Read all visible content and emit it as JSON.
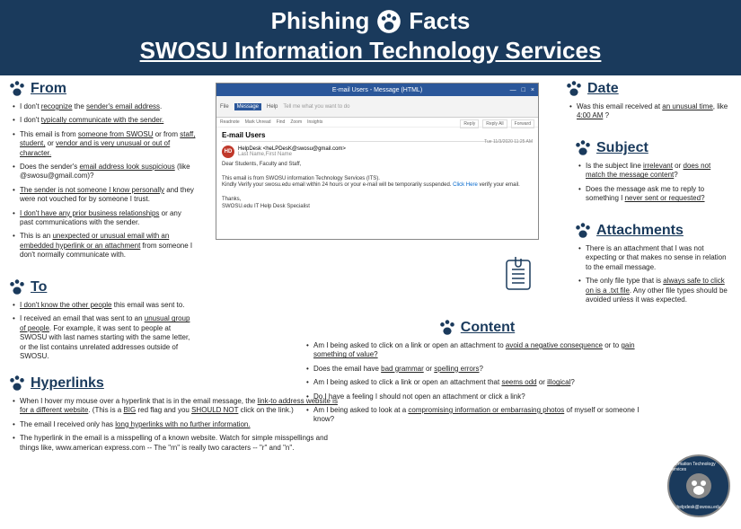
{
  "header": {
    "title_left": "Phishing",
    "title_right": "Facts",
    "subtitle": "SWOSU Information Technology Services"
  },
  "colors": {
    "primary": "#1a3a5c",
    "white": "#ffffff",
    "email_blue": "#2b579a",
    "avatar": "#c0392b"
  },
  "sections": {
    "from": {
      "title": "From",
      "items": [
        "I don't <u>recognize</u> the <u>sender's email address</u>.",
        "I don't <u>typically communicate with the sender.</u>",
        "This email is from <u>someone from SWOSU</u> or from <u>staff, student,</u> or <u>vendor and is very unusual or out of character.</u>",
        "Does the sender's <u>email address look suspicious</u> (like @swosu@gmail.com)?",
        "<u>The sender is not someone I know personally</u> and they were not vouched for by someone I trust.",
        "<u>I don't have any prior business relationships</u> or any past communications with the sender.",
        "This is an <u>unexpected or unusual email with an embedded hyperlink or an attachment</u> from someone I don't normally communicate with."
      ]
    },
    "to": {
      "title": "To",
      "items": [
        "<u>I don't know the other people</u> this email was sent to.",
        "I received an email that was sent to an <u>unusual group of people</u>. For example, it was sent  to people at SWOSU with last names starting with the same letter, or the list contains unrelated addresses outside of SWOSU."
      ]
    },
    "hyperlinks": {
      "title": "Hyperlinks",
      "items": [
        "When I hover my mouse over a hyperlink that is in the email message, the <u>link-to address website is for a different website</u>. (This is a <u>BIG</u> red flag and you <u>SHOULD NOT</u> click on the link.)",
        "The email I received only has <u>long hyperlinks with no further information.</u>",
        "The hyperlink in the email  is a misspelling of a known website. Watch for simple misspellings and things like, www.american express.com -- The \"rn\" is really two caracters -- \"r\" and \"n\"."
      ]
    },
    "date": {
      "title": "Date",
      "items": [
        "Was this email received at <u>an unusual time</u>, like <u>4:00 AM</u> ?"
      ]
    },
    "subject": {
      "title": "Subject",
      "items": [
        "Is the subject line <u>irrelevant</u> or <u>does not match the message content</u>?",
        "Does the message ask me to reply to something I <u>never sent or requested?</u>"
      ]
    },
    "attachments": {
      "title": "Attachments",
      "items": [
        "There is an attachment that I was not expecting or that makes no sense in relation to the email message.",
        "The only file type that is <u>always safe to click on is a .txt file</u>. Any other file types should be avoided unless it was expected."
      ]
    },
    "content": {
      "title": "Content",
      "items": [
        "Am I being asked to click on a link or open an attachment to <u>avoid a negative consequence</u> or to <u>gain something of value?</u>",
        "Does the email have <u>bad grammar</u> or <u>spelling errors</u>?",
        "Am I being asked to click a link or open an attachment that <u>seems odd</u> or <u>illogical</u>?",
        "Do I have a feeling I should not open an attachment or click a link?",
        "Am I being asked to look at a <u>compromising information or embarrasing photos</u> of myself or someone I know?"
      ]
    }
  },
  "email": {
    "titlebar": "E-mail Users - Message (HTML)",
    "ribbon": [
      "File",
      "Message",
      "Help",
      "Tell me what you want to do"
    ],
    "tools": [
      "Readnote",
      "Mark Unread",
      "Find",
      "Zoom",
      "Insights"
    ],
    "subject_line": "E-mail Users",
    "avatar_initials": "HD",
    "from_name": "HelpDesk",
    "from_addr": "<heLPDesK@swosu@gmail.com>",
    "to_line": "Last Name,First Name",
    "greeting": "Dear Students, Faculty and Staff,",
    "body1": "This email is from SWOSU information Technology Services (ITS).",
    "body2_a": "Kindly Verify your swosu.edu email within 24 hours or your e-mail will be temporarily suspended. ",
    "body2_link": "Click Here",
    "body2_b": " verify your email.",
    "thanks": "Thanks,",
    "sig": "SWOSU.edu IT Help Desk Specialist",
    "date": "Tue 11/3/2020 11:25 AM",
    "reply_btns": [
      "Reply",
      "Reply All",
      "Forward"
    ]
  },
  "logo": {
    "top": "Information Technology Services",
    "bottom": "helpdesk@swosu.edu"
  }
}
